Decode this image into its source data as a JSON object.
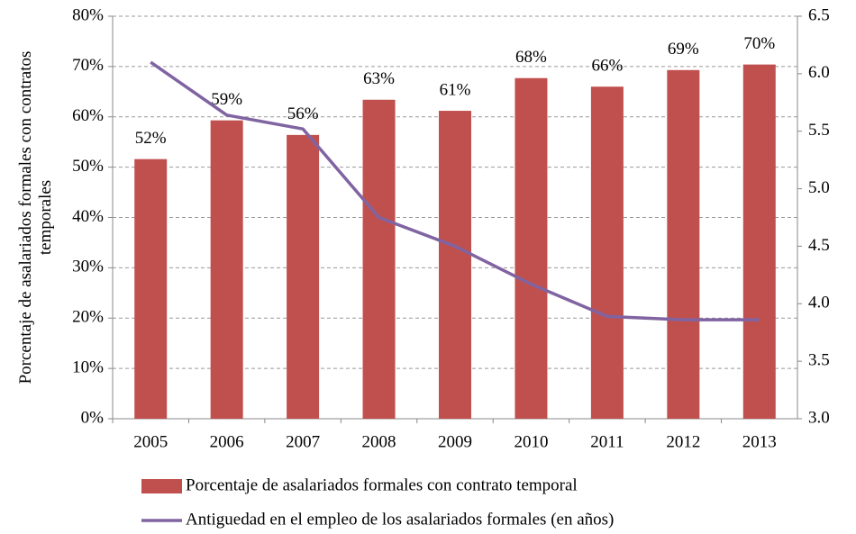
{
  "chart_data": {
    "type": "bar_line",
    "ylabel": [
      "Porcentaje de asalariados formales con contratos",
      "temporales"
    ],
    "categories": [
      "2005",
      "2006",
      "2007",
      "2008",
      "2009",
      "2010",
      "2011",
      "2012",
      "2013"
    ],
    "series": [
      {
        "name": "Porcentaje de asalariados formales con contrato temporal",
        "color": "#c0504d",
        "type": "bar",
        "values": [
          51.6,
          59.3,
          56.4,
          63.4,
          61.2,
          67.7,
          66.0,
          69.3,
          70.4
        ],
        "value_labels": [
          "52%",
          "59%",
          "56%",
          "63%",
          "61%",
          "68%",
          "66%",
          "69%",
          "70%"
        ]
      },
      {
        "name": "Antiguedad en el empleo de los asalariados formales (en años)",
        "color": "#8064a2",
        "type": "line",
        "axis": "y2",
        "values": [
          6.1,
          5.64,
          5.52,
          4.75,
          4.5,
          4.17,
          3.89,
          3.86,
          3.86
        ]
      }
    ],
    "ylim": [
      0,
      80
    ],
    "yticks": [
      {
        "value": 0,
        "label": "0%"
      },
      {
        "value": 10,
        "label": "10%"
      },
      {
        "value": 20,
        "label": "20%"
      },
      {
        "value": 30,
        "label": "30%"
      },
      {
        "value": 40,
        "label": "40%"
      },
      {
        "value": 50,
        "label": "50%"
      },
      {
        "value": 60,
        "label": "60%"
      },
      {
        "value": 70,
        "label": "70%"
      },
      {
        "value": 80,
        "label": "80%"
      }
    ],
    "y2lim": [
      3,
      6.5
    ],
    "y2ticks": [
      {
        "value": 3,
        "label": "3.0"
      },
      {
        "value": 3.5,
        "label": "3.5"
      },
      {
        "value": 4,
        "label": "4.0"
      },
      {
        "value": 4.5,
        "label": "4.5"
      },
      {
        "value": 5,
        "label": "5.0"
      },
      {
        "value": 5.5,
        "label": "5.5"
      },
      {
        "value": 6,
        "label": "6.0"
      },
      {
        "value": 6.5,
        "label": "6.5"
      }
    ],
    "grid": true
  }
}
